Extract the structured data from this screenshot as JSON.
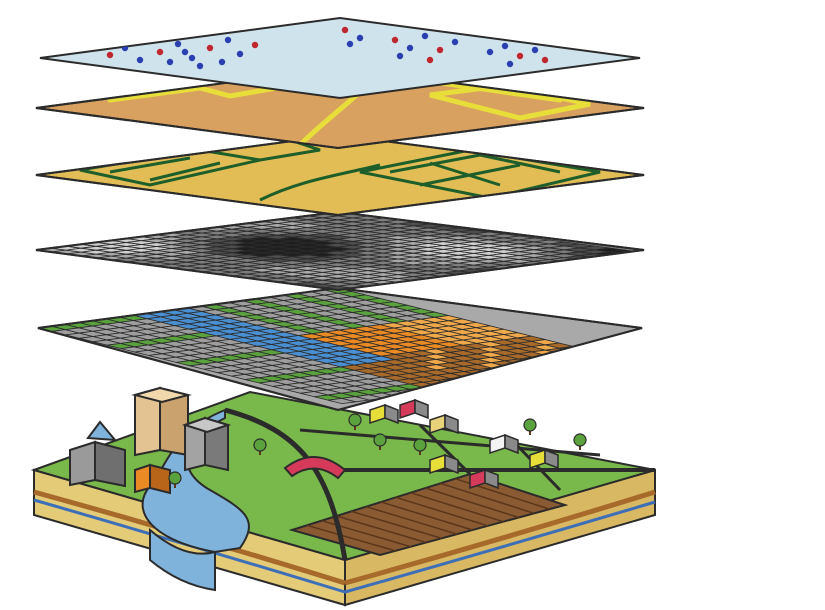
{
  "figure": {
    "layers": [
      {
        "key": "points",
        "fill": "#cfe3ec",
        "dot_colors": [
          "#2a3fb0",
          "#c0262d"
        ]
      },
      {
        "key": "lines",
        "fill": "#d9a15f",
        "line_color": "#e8de3a"
      },
      {
        "key": "polygons",
        "fill": "#e2bd55",
        "line_color": "#1d5e2a"
      },
      {
        "key": "grayscale-raster",
        "fill": "#8a8a8a",
        "cell_colors": [
          "#1f1f1f",
          "#4d4d4d",
          "#7d7d7d",
          "#a8a8a8",
          "#cfcfcf"
        ]
      },
      {
        "key": "color-raster",
        "fill": "#a9a9a9",
        "cell_colors": [
          "#9e9e9e",
          "#4a8fd1",
          "#5aa23d",
          "#e98a25",
          "#a86a2a",
          "#f0a94a"
        ]
      }
    ],
    "terrain": {
      "grass": "#79b84a",
      "water": "#7fb3dc",
      "soil": "#e4cb78",
      "field": "#8a5a32",
      "bridge": "#d63a5b",
      "road": "#2b2b2b"
    }
  }
}
